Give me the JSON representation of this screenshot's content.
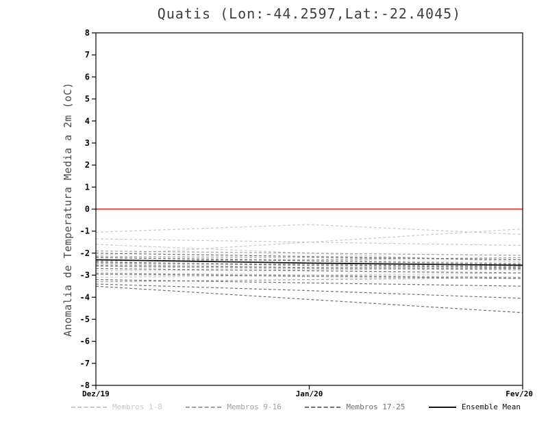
{
  "title": "Quatis (Lon:-44.2597,Lat:-22.4045)",
  "chart_data": {
    "type": "line",
    "title": "Quatis (Lon:-44.2597,Lat:-22.4045)",
    "xlabel": "",
    "ylabel": "Anomalia de Temperatura Media a 2m (oC)",
    "x": [
      0,
      0.5,
      1
    ],
    "x_tick_labels": [
      "Dez/19",
      "Jan/20",
      "Fev/20"
    ],
    "ylim": [
      -8,
      8
    ],
    "y_ticks": [
      8,
      7,
      6,
      5,
      4,
      3,
      2,
      1,
      0,
      -1,
      -2,
      -3,
      -4,
      -5,
      -6,
      -7,
      -8
    ],
    "grid": false,
    "axis_color": "#000000",
    "zero_line": {
      "y": 0,
      "color": "#e2443a"
    },
    "groups": [
      {
        "name": "Membros 1-8",
        "color": "#c9c9c9",
        "style": "dashed",
        "members": [
          [
            -1.05,
            -0.7,
            -1.15
          ],
          [
            -1.35,
            -1.5,
            -1.65
          ],
          [
            -2.1,
            -1.5,
            -0.9
          ],
          [
            -2.2,
            -2.3,
            -2.45
          ],
          [
            -2.5,
            -2.55,
            -2.6
          ],
          [
            -2.8,
            -2.75,
            -2.7
          ],
          [
            -3.1,
            -3.0,
            -2.9
          ],
          [
            -1.6,
            -2.0,
            -2.4
          ]
        ]
      },
      {
        "name": "Membros 9-16",
        "color": "#9f9f9f",
        "style": "dashed",
        "members": [
          [
            -1.9,
            -2.0,
            -2.1
          ],
          [
            -2.15,
            -2.2,
            -2.3
          ],
          [
            -2.3,
            -2.45,
            -2.55
          ],
          [
            -2.45,
            -2.5,
            -2.6
          ],
          [
            -2.6,
            -2.7,
            -2.75
          ],
          [
            -2.9,
            -3.0,
            -3.1
          ],
          [
            -3.3,
            -3.2,
            -3.1
          ],
          [
            -2.35,
            -2.3,
            -2.2
          ]
        ]
      },
      {
        "name": "Membros 17-25",
        "color": "#6f6f6f",
        "style": "dashed",
        "members": [
          [
            -2.2,
            -2.35,
            -2.5
          ],
          [
            -2.4,
            -2.55,
            -2.65
          ],
          [
            -2.55,
            -2.65,
            -2.7
          ],
          [
            -2.7,
            -2.8,
            -2.9
          ],
          [
            -2.95,
            -3.05,
            -3.15
          ],
          [
            -3.2,
            -3.35,
            -3.5
          ],
          [
            -3.4,
            -3.7,
            -4.05
          ],
          [
            -3.5,
            -4.1,
            -4.7
          ],
          [
            -2.0,
            -2.15,
            -2.3
          ]
        ]
      }
    ],
    "ensemble_mean": {
      "name": "Ensemble Mean",
      "color": "#111111",
      "style": "solid",
      "values": [
        -2.3,
        -2.45,
        -2.55
      ]
    },
    "legend_position": "bottom"
  },
  "legend": {
    "entries": [
      {
        "label": "Membros 1-8",
        "color": "#c9c9c9",
        "style": "dashed"
      },
      {
        "label": "Membros 9-16",
        "color": "#9f9f9f",
        "style": "dashed"
      },
      {
        "label": "Membros 17-25",
        "color": "#6f6f6f",
        "style": "dashed"
      },
      {
        "label": "Ensemble Mean",
        "color": "#111111",
        "style": "solid"
      }
    ]
  }
}
